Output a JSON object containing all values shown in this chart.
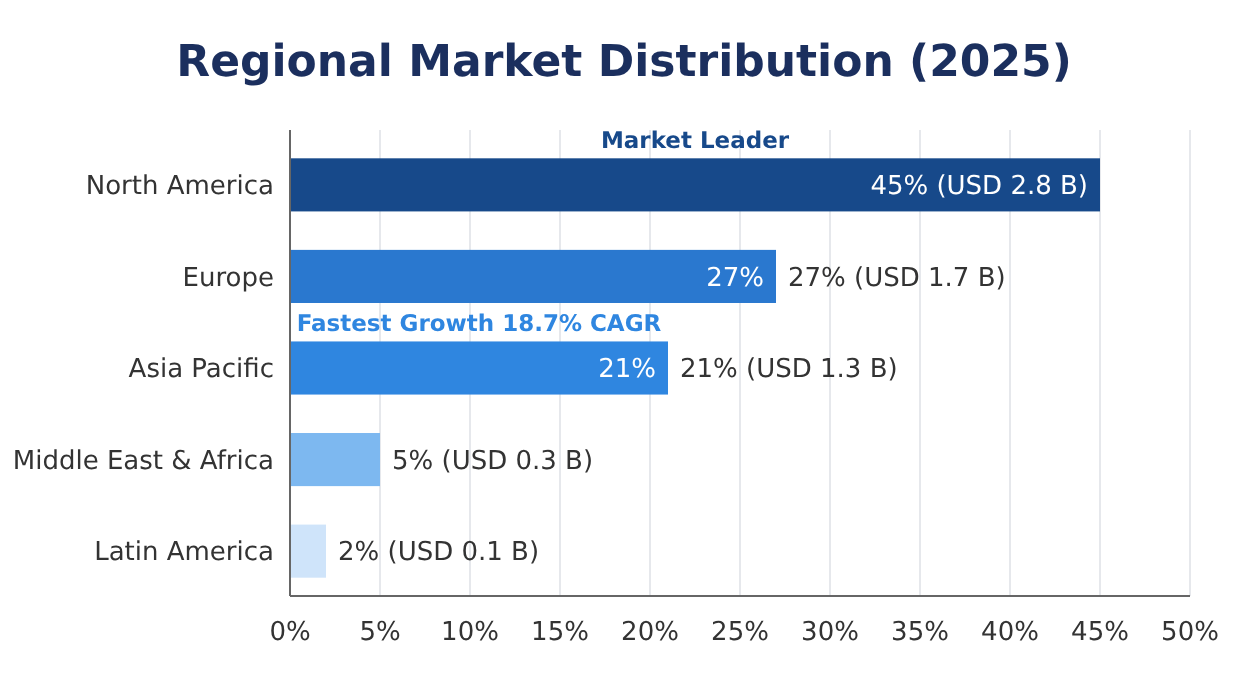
{
  "chart_data": {
    "type": "bar",
    "orientation": "horizontal",
    "title": "Regional Market Distribution (2025)",
    "categories": [
      "North America",
      "Europe",
      "Asia Pacific",
      "Middle East & Africa",
      "Latin America"
    ],
    "values": [
      45,
      27,
      21,
      5,
      2
    ],
    "colors": [
      "#17498a",
      "#2a78cf",
      "#2f86e0",
      "#7db8f0",
      "#cfe4fa"
    ],
    "value_labels": [
      "45% (USD 2.8 B)",
      "27% (USD 1.7 B)",
      "21% (USD 1.3 B)",
      "5% (USD 0.3 B)",
      "2% (USD 0.1 B)"
    ],
    "xlim": [
      0,
      50
    ],
    "xticks": [
      {
        "value": 0,
        "label": "0%"
      },
      {
        "value": 5,
        "label": "5%"
      },
      {
        "value": 10,
        "label": "10%"
      },
      {
        "value": 15,
        "label": "15%"
      },
      {
        "value": 20,
        "label": "20%"
      },
      {
        "value": 25,
        "label": "25%"
      },
      {
        "value": 30,
        "label": "30%"
      },
      {
        "value": 35,
        "label": "35%"
      },
      {
        "value": 40,
        "label": "40%"
      },
      {
        "value": 45,
        "label": "45%"
      },
      {
        "value": 50,
        "label": "50%"
      }
    ],
    "grid": "x",
    "annotations": [
      "Market Leader",
      {
        "text": "27%",
        "x": 27,
        "y": "Europe"
      },
      "Fastest Growth 18.7% CAGR",
      {
        "text": "21%",
        "x": 21,
        "y": "Asia Pacific"
      }
    ]
  }
}
